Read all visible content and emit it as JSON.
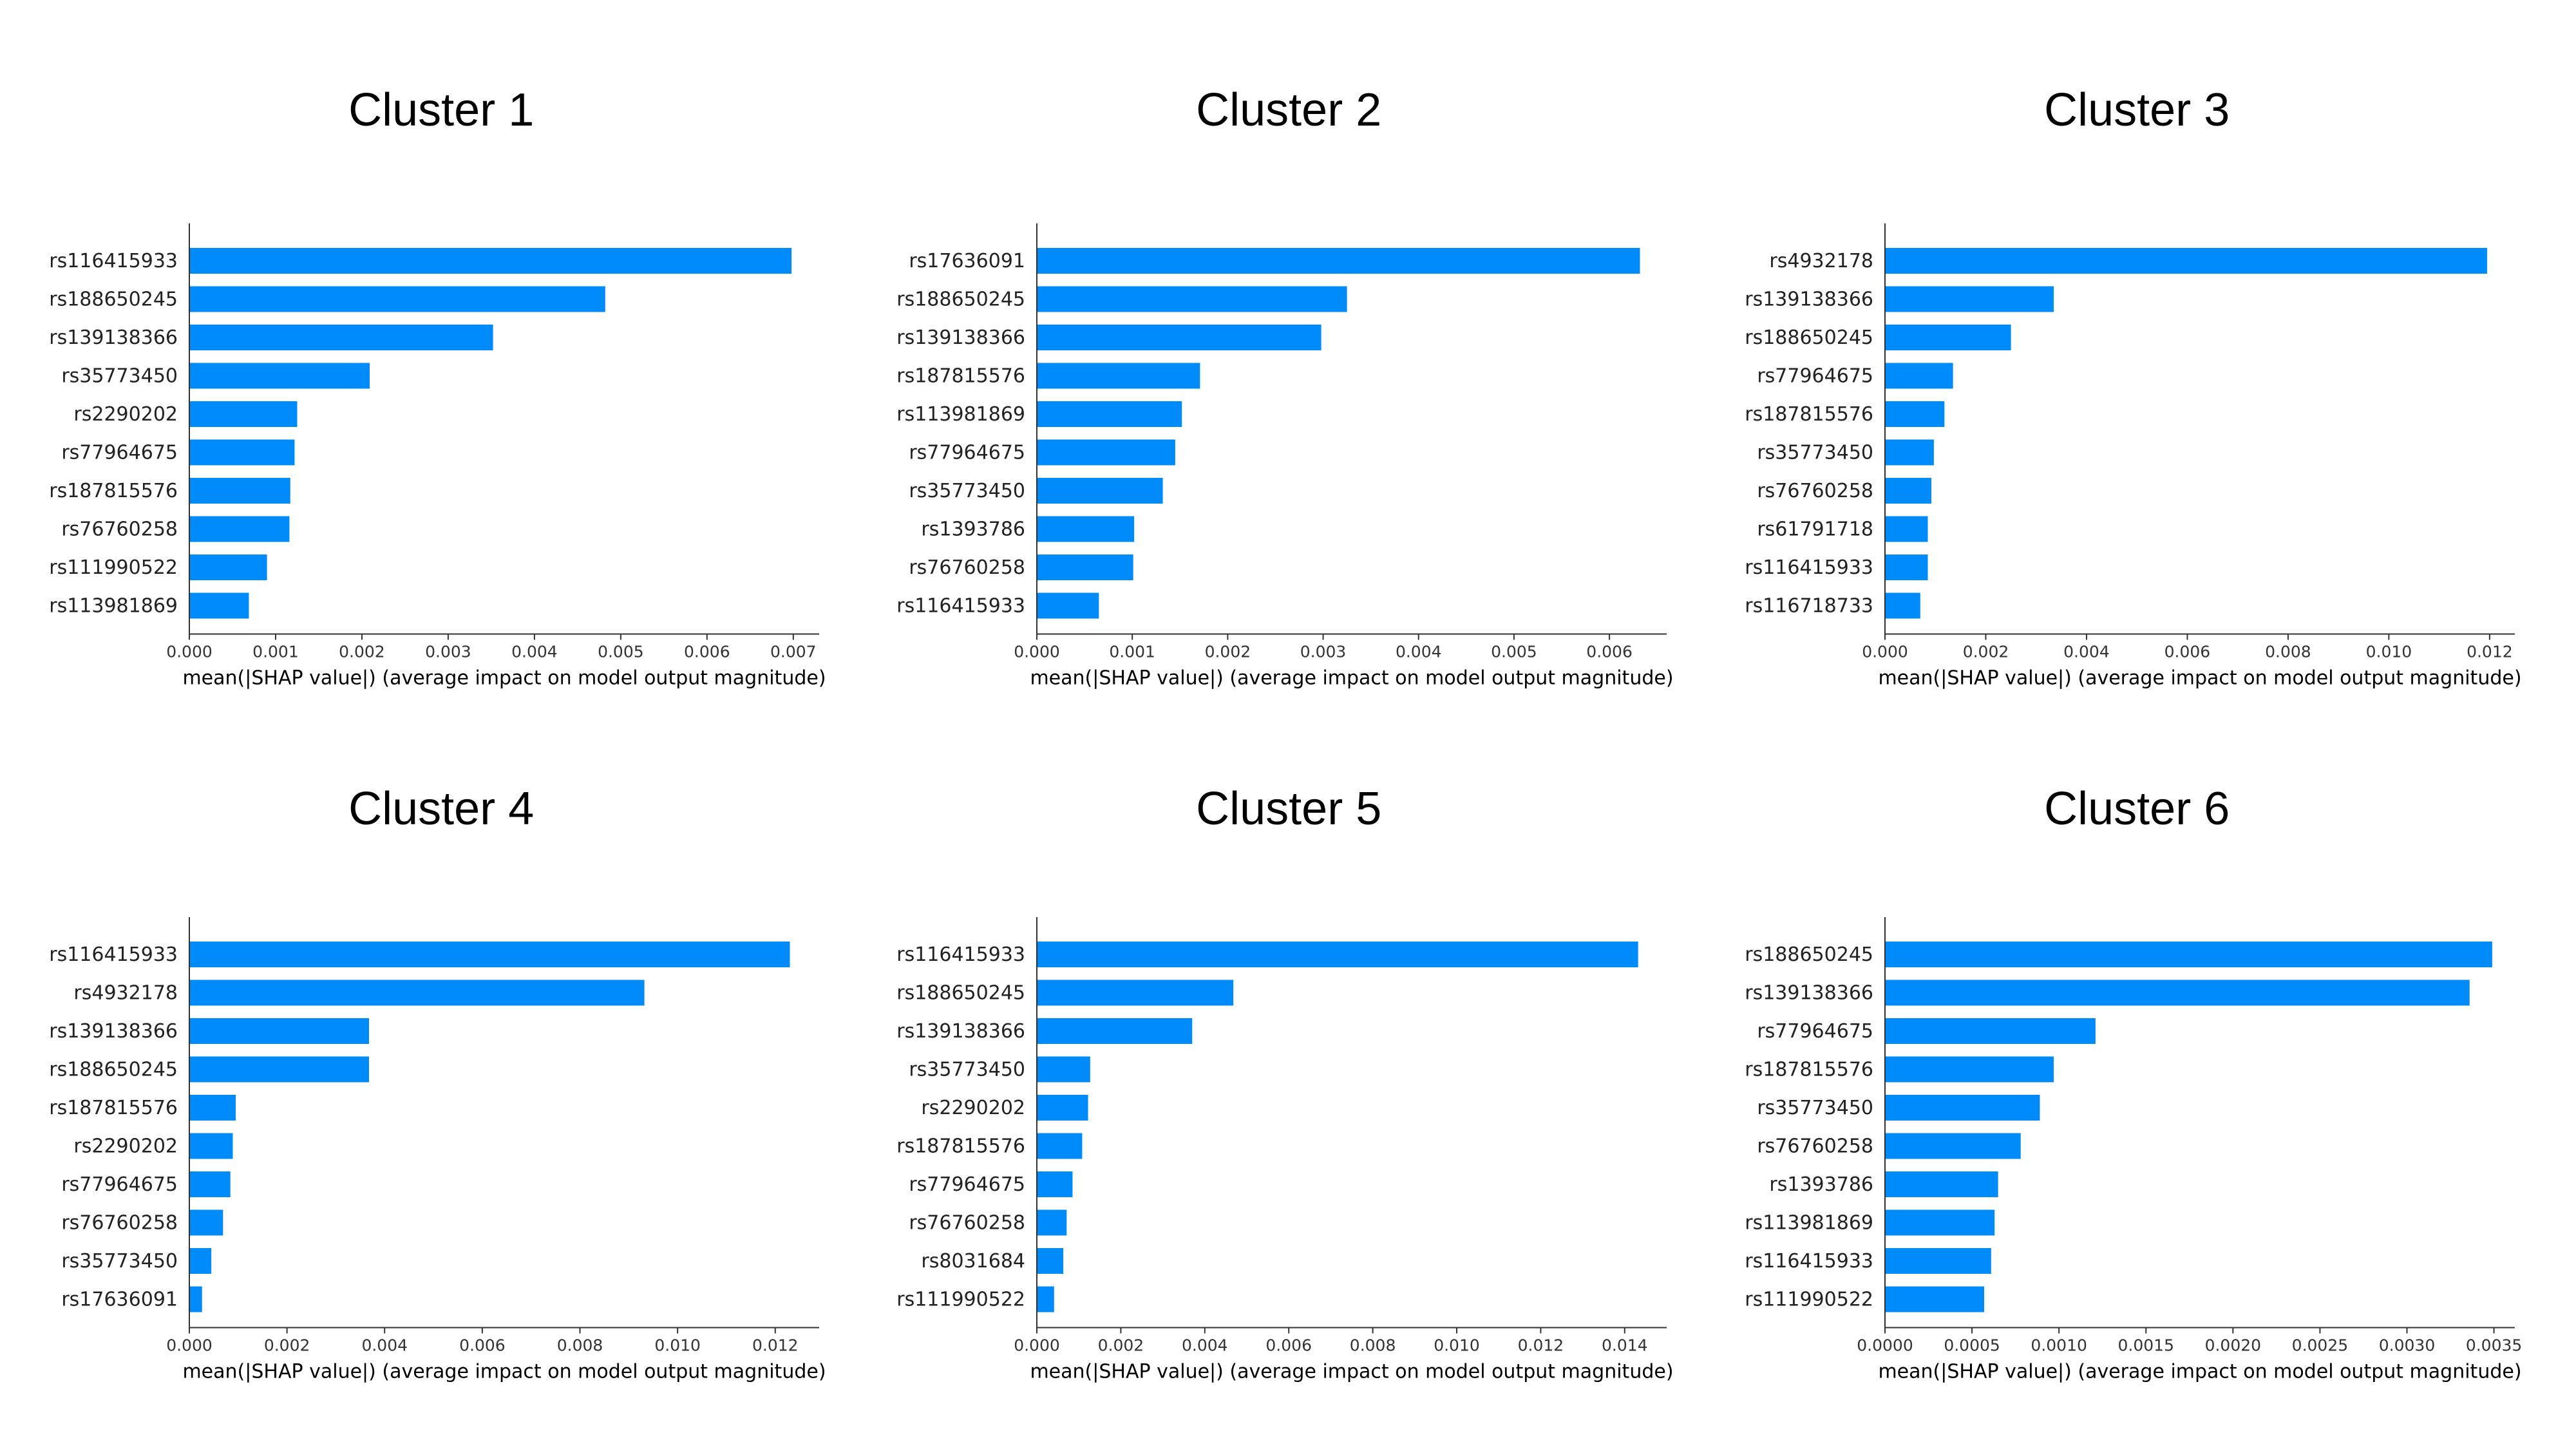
{
  "chart_data": [
    {
      "type": "bar",
      "orientation": "horizontal",
      "title": "Cluster 1",
      "xlabel": "mean(|SHAP value|) (average impact on model output magnitude)",
      "xlim": [
        0,
        0.0073
      ],
      "xticks": [
        0.0,
        0.001,
        0.002,
        0.003,
        0.004,
        0.005,
        0.006,
        0.007
      ],
      "xtick_labels": [
        "0.000",
        "0.001",
        "0.002",
        "0.003",
        "0.004",
        "0.005",
        "0.006",
        "0.007"
      ],
      "categories": [
        "rs116415933",
        "rs188650245",
        "rs139138366",
        "rs35773450",
        "rs2290202",
        "rs77964675",
        "rs187815576",
        "rs76760258",
        "rs111990522",
        "rs113981869"
      ],
      "values": [
        0.00698,
        0.00482,
        0.00352,
        0.00209,
        0.00125,
        0.00122,
        0.00117,
        0.00116,
        0.0009,
        0.00069
      ],
      "color": "#008bfb"
    },
    {
      "type": "bar",
      "orientation": "horizontal",
      "title": "Cluster 2",
      "xlabel": "mean(|SHAP value|) (average impact on model output magnitude)",
      "xlim": [
        0,
        0.0066
      ],
      "xticks": [
        0.0,
        0.001,
        0.002,
        0.003,
        0.004,
        0.005,
        0.006
      ],
      "xtick_labels": [
        "0.000",
        "0.001",
        "0.002",
        "0.003",
        "0.004",
        "0.005",
        "0.006"
      ],
      "categories": [
        "rs17636091",
        "rs188650245",
        "rs139138366",
        "rs187815576",
        "rs113981869",
        "rs77964675",
        "rs35773450",
        "rs1393786",
        "rs76760258",
        "rs116415933"
      ],
      "values": [
        0.00632,
        0.00325,
        0.00298,
        0.00171,
        0.00152,
        0.00145,
        0.00132,
        0.00102,
        0.00101,
        0.00065
      ],
      "color": "#008bfb"
    },
    {
      "type": "bar",
      "orientation": "horizontal",
      "title": "Cluster 3",
      "xlabel": "mean(|SHAP value|) (average impact on model output magnitude)",
      "xlim": [
        0,
        0.0125
      ],
      "xticks": [
        0.0,
        0.002,
        0.004,
        0.006,
        0.008,
        0.01,
        0.012
      ],
      "xtick_labels": [
        "0.000",
        "0.002",
        "0.004",
        "0.006",
        "0.008",
        "0.010",
        "0.012"
      ],
      "categories": [
        "rs4932178",
        "rs139138366",
        "rs188650245",
        "rs77964675",
        "rs187815576",
        "rs35773450",
        "rs76760258",
        "rs61791718",
        "rs116415933",
        "rs116718733"
      ],
      "values": [
        0.01195,
        0.00335,
        0.0025,
        0.00135,
        0.00118,
        0.00097,
        0.00092,
        0.00085,
        0.00085,
        0.0007
      ],
      "color": "#008bfb"
    },
    {
      "type": "bar",
      "orientation": "horizontal",
      "title": "Cluster 4",
      "xlabel": "mean(|SHAP value|) (average impact on model output magnitude)",
      "xlim": [
        0,
        0.0129
      ],
      "xticks": [
        0.0,
        0.002,
        0.004,
        0.006,
        0.008,
        0.01,
        0.012
      ],
      "xtick_labels": [
        "0.000",
        "0.002",
        "0.004",
        "0.006",
        "0.008",
        "0.010",
        "0.012"
      ],
      "categories": [
        "rs116415933",
        "rs4932178",
        "rs139138366",
        "rs188650245",
        "rs187815576",
        "rs2290202",
        "rs77964675",
        "rs76760258",
        "rs35773450",
        "rs17636091"
      ],
      "values": [
        0.0123,
        0.00932,
        0.00368,
        0.00368,
        0.00095,
        0.00089,
        0.00084,
        0.00069,
        0.00045,
        0.00026
      ],
      "color": "#008bfb"
    },
    {
      "type": "bar",
      "orientation": "horizontal",
      "title": "Cluster 5",
      "xlabel": "mean(|SHAP value|) (average impact on model output magnitude)",
      "xlim": [
        0,
        0.015
      ],
      "xticks": [
        0.0,
        0.002,
        0.004,
        0.006,
        0.008,
        0.01,
        0.012,
        0.014
      ],
      "xtick_labels": [
        "0.000",
        "0.002",
        "0.004",
        "0.006",
        "0.008",
        "0.010",
        "0.012",
        "0.014"
      ],
      "categories": [
        "rs116415933",
        "rs188650245",
        "rs139138366",
        "rs35773450",
        "rs2290202",
        "rs187815576",
        "rs77964675",
        "rs76760258",
        "rs8031684",
        "rs111990522"
      ],
      "values": [
        0.01432,
        0.00468,
        0.0037,
        0.00127,
        0.00122,
        0.00108,
        0.00085,
        0.00071,
        0.00063,
        0.00041
      ],
      "color": "#008bfb"
    },
    {
      "type": "bar",
      "orientation": "horizontal",
      "title": "Cluster 6",
      "xlabel": "mean(|SHAP value|) (average impact on model output magnitude)",
      "xlim": [
        0,
        0.00362
      ],
      "xticks": [
        0.0,
        0.0005,
        0.001,
        0.0015,
        0.002,
        0.0025,
        0.003,
        0.0035
      ],
      "xtick_labels": [
        "0.0000",
        "0.0005",
        "0.0010",
        "0.0015",
        "0.0020",
        "0.0025",
        "0.0030",
        "0.0035"
      ],
      "categories": [
        "rs188650245",
        "rs139138366",
        "rs77964675",
        "rs187815576",
        "rs35773450",
        "rs76760258",
        "rs1393786",
        "rs113981869",
        "rs116415933",
        "rs111990522"
      ],
      "values": [
        0.00349,
        0.00336,
        0.00121,
        0.00097,
        0.00089,
        0.00078,
        0.00065,
        0.00063,
        0.00061,
        0.00057
      ],
      "color": "#008bfb"
    }
  ]
}
